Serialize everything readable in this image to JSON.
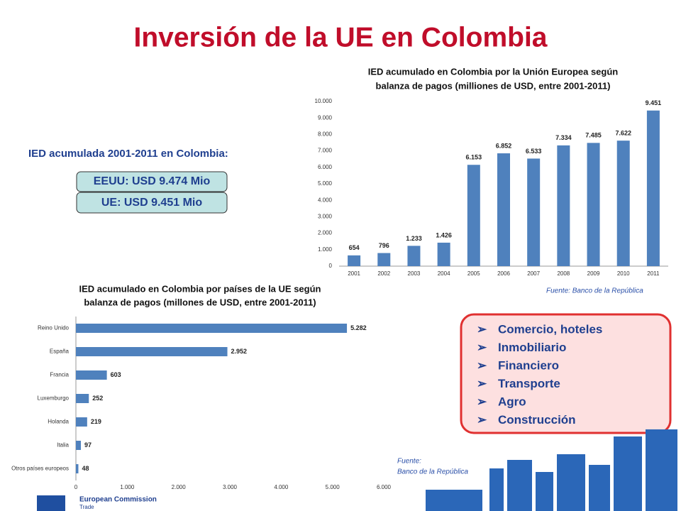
{
  "title": "Inversión de la UE en Colombia",
  "summary": {
    "heading": "IED acumulada 2001-2011 en Colombia:",
    "boxes": [
      "EEUU: USD 9.474 Mio",
      "UE: USD 9.451 Mio"
    ]
  },
  "sectors": [
    "Comercio, hoteles",
    "Inmobiliario",
    "Financiero",
    "Transporte",
    "Agro",
    "Construcción"
  ],
  "sources": {
    "top": "Fuente: Banco de la República",
    "bottom": [
      "Fuente:",
      "Banco de la República"
    ]
  },
  "footer": {
    "org": "European Commission",
    "dg": "Trade"
  },
  "chart_data": [
    {
      "type": "bar",
      "title": [
        "IED acumulado en Colombia por la Unión Europea según",
        "balanza de pagos (milliones de USD, entre 2001-2011)"
      ],
      "categories": [
        "2001",
        "2002",
        "2003",
        "2004",
        "2005",
        "2006",
        "2007",
        "2008",
        "2009",
        "2010",
        "2011"
      ],
      "values": [
        654,
        796,
        1233,
        1426,
        6153,
        6852,
        6533,
        7334,
        7485,
        7622,
        9451
      ],
      "value_labels": [
        "654",
        "796",
        "1.233",
        "1.426",
        "6.153",
        "6.852",
        "6.533",
        "7.334",
        "7.485",
        "7.622",
        "9.451"
      ],
      "color": "#4f81bd",
      "grid": false,
      "ylim": [
        0,
        10000
      ],
      "yticks": [
        0,
        {
          "value": 1000,
          "label": "1.000"
        },
        {
          "value": 2000,
          "label": "2.000"
        },
        {
          "value": 3000,
          "label": "3.000"
        },
        {
          "value": 4000,
          "label": "4.000"
        },
        {
          "value": 5000,
          "label": "5.000"
        },
        {
          "value": 6000,
          "label": "6.000"
        },
        {
          "value": 7000,
          "label": "7.000"
        },
        {
          "value": 8000,
          "label": "8.000"
        },
        {
          "value": 9000,
          "label": "9.000"
        },
        {
          "value": 10000,
          "label": "10.000"
        }
      ]
    },
    {
      "type": "hbar",
      "title": [
        "IED acumulado en Colombia por países de la UE según",
        "balanza de pagos (millones de USD, entre 2001-2011)"
      ],
      "categories": [
        "Reino Unido",
        "España",
        "Francia",
        "Luxemburgo",
        "Holanda",
        "Italia",
        "Otros países europeos"
      ],
      "values": [
        5282,
        2952,
        603,
        252,
        219,
        97,
        48
      ],
      "value_labels": [
        "5.282",
        "2.952",
        "603",
        "252",
        "219",
        "97",
        "48"
      ],
      "color": "#4f81bd",
      "grid": false,
      "xlim": [
        0,
        6000
      ],
      "xticks": [
        0,
        {
          "value": 1000,
          "label": "1.000"
        },
        {
          "value": 2000,
          "label": "2.000"
        },
        {
          "value": 3000,
          "label": "3.000"
        },
        {
          "value": 4000,
          "label": "4.000"
        },
        {
          "value": 5000,
          "label": "5.000"
        },
        {
          "value": 6000,
          "label": "6.000"
        }
      ]
    }
  ]
}
